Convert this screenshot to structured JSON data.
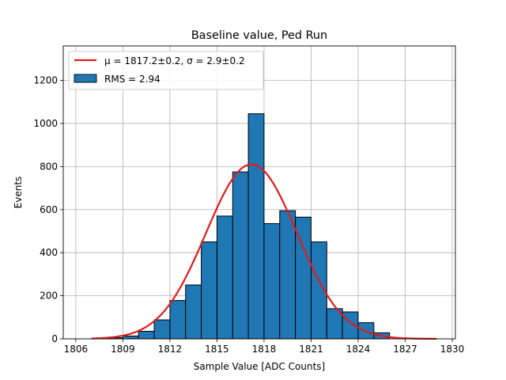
{
  "chart_data": {
    "type": "bar",
    "title": "Baseline value, Ped Run",
    "xlabel": "Sample Value [ADC Counts]",
    "ylabel": "Events",
    "xlim": [
      1805.2,
      1830.2
    ],
    "ylim": [
      0,
      1360
    ],
    "xticks": [
      1806,
      1809,
      1812,
      1815,
      1818,
      1821,
      1824,
      1827,
      1830
    ],
    "yticks": [
      0,
      200,
      400,
      600,
      800,
      1000,
      1200
    ],
    "grid": true,
    "legend_position": "top-left",
    "histogram": {
      "name": "RMS = 2.94",
      "color": "#1f77b4",
      "bin_edges": [
        1808,
        1809,
        1810,
        1811,
        1812,
        1813,
        1814,
        1815,
        1816,
        1817,
        1818,
        1819,
        1820,
        1821,
        1822,
        1823,
        1824,
        1825,
        1826
      ],
      "values": [
        5,
        13,
        35,
        88,
        178,
        250,
        450,
        570,
        775,
        1045,
        535,
        595,
        565,
        450,
        140,
        125,
        75,
        28
      ]
    },
    "fit": {
      "name": "μ = 1817.2±0.2, σ = 2.9±0.2",
      "color": "#e31a1c",
      "mu": 1817.2,
      "sigma": 2.9,
      "amplitude": 810,
      "x_range": [
        1807,
        1829
      ]
    }
  }
}
